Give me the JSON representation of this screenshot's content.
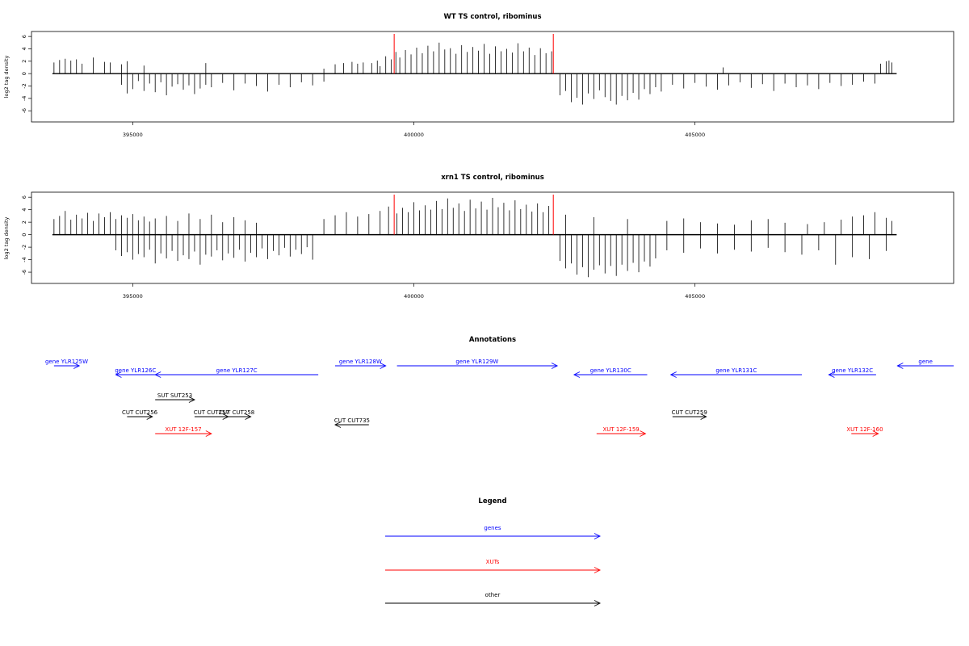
{
  "chart_data": [
    {
      "type": "bar",
      "title": "WT TS control, ribominus",
      "ylabel": "log2 tag density",
      "xlabel": "",
      "xlim": [
        393200,
        409600
      ],
      "ylim": [
        -7.8,
        6.8
      ],
      "xticks": [
        395000,
        400000,
        405000
      ],
      "yticks": [
        6,
        4,
        2,
        0,
        -2,
        -4,
        -6
      ],
      "grid": false,
      "markers": [
        399650,
        402480
      ],
      "series": [
        {
          "name": "",
          "x": [
            393600,
            393700,
            393800,
            393900,
            394000,
            394100,
            394300,
            394500,
            394600,
            394800,
            394900,
            395200,
            396300,
            398400,
            398600,
            398750,
            398900,
            399000,
            399100,
            399250,
            399350,
            399400,
            399500,
            399600,
            399680,
            399750,
            399850,
            399950,
            400050,
            400150,
            400250,
            400350,
            400450,
            400550,
            400650,
            400750,
            400850,
            400950,
            401050,
            401150,
            401250,
            401350,
            401450,
            401550,
            401650,
            401750,
            401850,
            401950,
            402050,
            402150,
            402250,
            402350,
            402450,
            405500,
            408300,
            408400,
            408450,
            408500
          ],
          "values": [
            1.8,
            2.2,
            2.4,
            2.1,
            2.3,
            1.6,
            2.6,
            1.9,
            1.8,
            1.5,
            2.0,
            1.3,
            1.7,
            0.8,
            1.5,
            1.7,
            1.9,
            1.6,
            1.8,
            1.7,
            2.1,
            1.2,
            2.8,
            2.3,
            3.5,
            2.6,
            3.8,
            3.1,
            4.2,
            3.3,
            4.5,
            3.6,
            5.0,
            3.9,
            4.1,
            3.2,
            4.6,
            3.5,
            4.3,
            3.7,
            4.8,
            3.2,
            4.4,
            3.6,
            4.0,
            3.4,
            4.9,
            3.6,
            4.2,
            3.0,
            4.1,
            3.3,
            3.6,
            1.0,
            1.6,
            2.0,
            2.1,
            1.8
          ]
        },
        {
          "name": "",
          "x": [
            394800,
            394900,
            395000,
            395100,
            395200,
            395300,
            395400,
            395500,
            395600,
            395700,
            395800,
            395900,
            396000,
            396100,
            396200,
            396300,
            396400,
            396600,
            396800,
            397000,
            397200,
            397400,
            397600,
            397800,
            398000,
            398200,
            398400,
            402600,
            402700,
            402800,
            402900,
            403000,
            403100,
            403200,
            403300,
            403400,
            403500,
            403600,
            403700,
            403800,
            403900,
            404000,
            404100,
            404200,
            404300,
            404400,
            404600,
            404800,
            405000,
            405200,
            405400,
            405600,
            405800,
            406000,
            406200,
            406400,
            406600,
            406800,
            407000,
            407200,
            407400,
            407600,
            407800,
            408000,
            408200
          ],
          "values": [
            -1.8,
            -3.2,
            -2.5,
            -1.2,
            -2.8,
            -1.6,
            -3.0,
            -1.4,
            -3.5,
            -2.1,
            -1.7,
            -2.6,
            -1.9,
            -3.3,
            -2.4,
            -1.8,
            -2.2,
            -1.5,
            -2.7,
            -1.6,
            -2.0,
            -2.9,
            -1.8,
            -2.2,
            -1.4,
            -1.9,
            -1.3,
            -3.5,
            -2.8,
            -4.6,
            -3.9,
            -5.0,
            -3.2,
            -4.1,
            -2.7,
            -3.8,
            -4.4,
            -5.0,
            -3.6,
            -4.3,
            -3.1,
            -4.2,
            -2.5,
            -3.3,
            -2.2,
            -2.9,
            -1.8,
            -2.4,
            -1.5,
            -2.1,
            -2.6,
            -1.9,
            -1.4,
            -2.3,
            -1.7,
            -2.8,
            -1.6,
            -2.2,
            -1.9,
            -2.5,
            -1.5,
            -2.0,
            -1.8,
            -1.3,
            -1.6
          ]
        }
      ]
    },
    {
      "type": "bar",
      "title": "xrn1 TS control, ribominus",
      "ylabel": "log2 tag density",
      "xlabel": "",
      "xlim": [
        393200,
        409600
      ],
      "ylim": [
        -7.8,
        6.8
      ],
      "xticks": [
        395000,
        400000,
        405000
      ],
      "yticks": [
        6,
        4,
        2,
        0,
        -2,
        -4,
        -6
      ],
      "grid": false,
      "markers": [
        399650,
        402480
      ],
      "series": [
        {
          "name": "",
          "x": [
            393600,
            393700,
            393800,
            393900,
            394000,
            394100,
            394200,
            394300,
            394400,
            394500,
            394600,
            394700,
            394800,
            394900,
            395000,
            395100,
            395200,
            395300,
            395400,
            395600,
            395800,
            396000,
            396200,
            396400,
            396600,
            396800,
            397000,
            397200,
            398400,
            398600,
            398800,
            399000,
            399200,
            399400,
            399550,
            399700,
            399800,
            399900,
            400000,
            400100,
            400200,
            400300,
            400400,
            400500,
            400600,
            400700,
            400800,
            400900,
            401000,
            401100,
            401200,
            401300,
            401400,
            401500,
            401600,
            401700,
            401800,
            401900,
            402000,
            402100,
            402200,
            402300,
            402400,
            402700,
            403200,
            403800,
            404500,
            404800,
            405100,
            405400,
            405700,
            406000,
            406300,
            406600,
            407000,
            407300,
            407600,
            407800,
            408000,
            408200,
            408400,
            408500
          ],
          "values": [
            2.5,
            3.0,
            3.8,
            2.4,
            3.2,
            2.6,
            3.5,
            2.2,
            3.4,
            2.8,
            3.6,
            2.5,
            3.1,
            2.7,
            3.3,
            2.3,
            2.9,
            2.1,
            2.6,
            3.0,
            2.2,
            3.4,
            2.5,
            3.2,
            2.0,
            2.8,
            2.3,
            1.9,
            2.5,
            3.1,
            3.6,
            2.9,
            3.3,
            3.8,
            4.5,
            3.4,
            4.3,
            3.6,
            5.2,
            3.9,
            4.7,
            4.0,
            5.4,
            4.1,
            5.8,
            4.3,
            5.0,
            3.8,
            5.6,
            4.2,
            5.3,
            4.0,
            5.9,
            4.4,
            5.1,
            3.9,
            5.5,
            4.1,
            4.8,
            3.7,
            5.0,
            3.6,
            4.6,
            3.2,
            2.8,
            2.5,
            2.2,
            2.6,
            2.0,
            1.8,
            1.6,
            2.3,
            2.5,
            1.9,
            1.7,
            2.0,
            2.4,
            2.9,
            3.1,
            3.6,
            2.7,
            2.2
          ]
        },
        {
          "name": "",
          "x": [
            394700,
            394800,
            394900,
            395000,
            395100,
            395200,
            395300,
            395400,
            395500,
            395600,
            395700,
            395800,
            395900,
            396000,
            396100,
            396200,
            396300,
            396400,
            396500,
            396600,
            396700,
            396800,
            396900,
            397000,
            397100,
            397200,
            397300,
            397400,
            397500,
            397600,
            397700,
            397800,
            397900,
            398000,
            398100,
            398200,
            402600,
            402700,
            402800,
            402900,
            403000,
            403100,
            403200,
            403300,
            403400,
            403500,
            403600,
            403700,
            403800,
            403900,
            404000,
            404100,
            404200,
            404300,
            404500,
            404800,
            405100,
            405400,
            405700,
            406000,
            406300,
            406600,
            406900,
            407200,
            407500,
            407800,
            408100,
            408400
          ],
          "values": [
            -2.5,
            -3.4,
            -2.8,
            -4.0,
            -3.1,
            -3.6,
            -2.4,
            -4.6,
            -3.0,
            -3.8,
            -2.6,
            -4.2,
            -3.3,
            -3.9,
            -2.7,
            -4.8,
            -3.2,
            -3.5,
            -2.5,
            -4.1,
            -3.0,
            -3.7,
            -2.4,
            -4.3,
            -2.9,
            -3.6,
            -2.2,
            -3.9,
            -2.6,
            -3.3,
            -2.1,
            -3.5,
            -2.4,
            -3.1,
            -2.0,
            -4.0,
            -4.2,
            -5.4,
            -4.6,
            -6.4,
            -5.2,
            -6.8,
            -5.6,
            -4.9,
            -6.2,
            -5.0,
            -6.6,
            -4.8,
            -5.8,
            -4.5,
            -6.0,
            -4.3,
            -5.1,
            -3.8,
            -2.5,
            -2.9,
            -2.2,
            -3.0,
            -2.4,
            -2.7,
            -2.1,
            -2.8,
            -3.2,
            -2.5,
            -4.8,
            -3.6,
            -3.9,
            -2.6
          ]
        }
      ]
    },
    {
      "type": "other",
      "title": "Annotations",
      "xlim": [
        393200,
        409600
      ],
      "features": [
        {
          "label": "gene YLR125W",
          "start": 393600,
          "end": 394050,
          "strand": "+",
          "row": 0,
          "color": "#0000ff"
        },
        {
          "label": "gene YLR126C",
          "start": 394700,
          "end": 395400,
          "strand": "-",
          "row": 1,
          "color": "#0000ff"
        },
        {
          "label": "gene YLR127C",
          "start": 395400,
          "end": 398300,
          "strand": "-",
          "row": 1,
          "color": "#0000ff"
        },
        {
          "label": "gene YLR128W",
          "start": 398600,
          "end": 399500,
          "strand": "+",
          "row": 0,
          "color": "#0000ff"
        },
        {
          "label": "gene YLR129W",
          "start": 399700,
          "end": 402550,
          "strand": "+",
          "row": 0,
          "color": "#0000ff"
        },
        {
          "label": "gene YLR130C",
          "start": 402850,
          "end": 404150,
          "strand": "-",
          "row": 1,
          "color": "#0000ff"
        },
        {
          "label": "gene YLR131C",
          "start": 404570,
          "end": 406900,
          "strand": "-",
          "row": 1,
          "color": "#0000ff"
        },
        {
          "label": "gene YLR132C",
          "start": 407380,
          "end": 408220,
          "strand": "-",
          "row": 1,
          "color": "#0000ff"
        },
        {
          "label": "gene",
          "start": 408600,
          "end": 409600,
          "strand": "-",
          "row": 0,
          "color": "#0000ff"
        },
        {
          "label": "SUT SUT253",
          "start": 395400,
          "end": 396100,
          "strand": "+",
          "row": 3,
          "color": "#000000"
        },
        {
          "label": "CUT CUT256",
          "start": 394900,
          "end": 395350,
          "strand": "+",
          "row": 4,
          "color": "#000000"
        },
        {
          "label": "CUT CUT257",
          "start": 396100,
          "end": 396700,
          "strand": "+",
          "row": 4,
          "color": "#000000"
        },
        {
          "label": "CUT CUT258",
          "start": 396600,
          "end": 397100,
          "strand": "+",
          "row": 4,
          "color": "#000000"
        },
        {
          "label": "CUT CUT735",
          "start": 398600,
          "end": 399200,
          "strand": "-",
          "row": 5,
          "color": "#000000"
        },
        {
          "label": "CUT CUT259",
          "start": 404600,
          "end": 405200,
          "strand": "+",
          "row": 4,
          "color": "#000000"
        },
        {
          "label": "XUT 12F-157",
          "start": 395400,
          "end": 396400,
          "strand": "+",
          "row": 6,
          "color": "#ff0000"
        },
        {
          "label": "XUT 12F-159",
          "start": 403250,
          "end": 404120,
          "strand": "+",
          "row": 6,
          "color": "#ff0000"
        },
        {
          "label": "XUT 12F-160",
          "start": 407780,
          "end": 408260,
          "strand": "+",
          "row": 6,
          "color": "#ff0000"
        }
      ]
    },
    {
      "type": "other",
      "title": "Legend",
      "entries": [
        {
          "label": "genes",
          "color": "#0000ff"
        },
        {
          "label": "XUTs",
          "color": "#ff0000"
        },
        {
          "label": "other",
          "color": "#000000"
        }
      ]
    }
  ]
}
